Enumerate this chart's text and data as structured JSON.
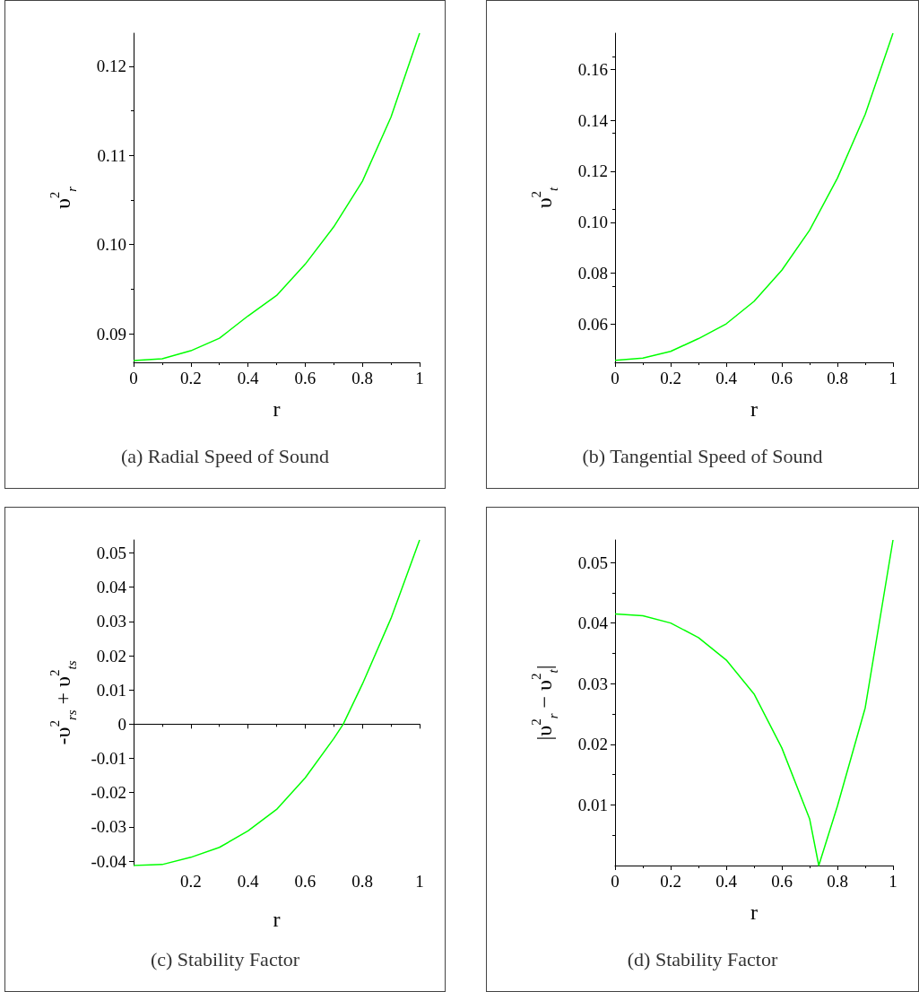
{
  "chart_data": [
    {
      "type": "line",
      "title": "(a) Radial Speed of Sound",
      "xlabel": "r",
      "ylabel": "υ$^{2}$$_{r}$",
      "marker": "none",
      "xlim": [
        0,
        1
      ],
      "ylim": [
        0.0868,
        0.1237
      ],
      "xticks": [
        0,
        0.2,
        0.4,
        0.6,
        0.8,
        1
      ],
      "yticks": [
        0.09,
        {
          "value": 0.1,
          "label": "0.10"
        },
        0.11,
        0.12
      ],
      "series": [
        {
          "color": "#00ff00",
          "x": [
            0,
            0.1,
            0.2,
            0.3,
            0.4,
            0.5,
            0.6,
            0.7,
            0.8,
            0.9,
            1
          ],
          "values": [
            0.087,
            0.0872,
            0.0881,
            0.0895,
            0.092,
            0.0943,
            0.0978,
            0.102,
            0.1071,
            0.1143,
            0.1237
          ]
        }
      ]
    },
    {
      "type": "line",
      "title": "(b) Tangential Speed of Sound",
      "xlabel": "r",
      "ylabel": "υ$^{2}$$_{t}$",
      "marker": "none",
      "xlim": [
        0,
        1
      ],
      "ylim": [
        0.0451,
        0.1741
      ],
      "xticks": [
        0,
        0.2,
        0.4,
        0.6,
        0.8,
        1
      ],
      "yticks": [
        0.06,
        0.08,
        {
          "value": 0.1,
          "label": "0.10"
        },
        0.12,
        0.14,
        0.16
      ],
      "series": [
        {
          "color": "#00ff00",
          "x": [
            0,
            0.1,
            0.2,
            0.3,
            0.4,
            0.5,
            0.6,
            0.7,
            0.8,
            0.9,
            1
          ],
          "values": [
            0.0459,
            0.0468,
            0.0494,
            0.0544,
            0.0602,
            0.069,
            0.0812,
            0.0969,
            0.1173,
            0.1423,
            0.1741
          ]
        }
      ]
    },
    {
      "type": "line",
      "title": "(c) Stability Factor",
      "xlabel": "r",
      "ylabel": "-υ$^{2}$$_{rs}$ + υ$^{2}$$_{ts}$",
      "marker": "none",
      "xlim": [
        0,
        1
      ],
      "ylim": [
        -0.0413,
        0.0538
      ],
      "xticks": [
        0.2,
        0.4,
        0.6,
        0.8,
        1
      ],
      "yticks": [
        -0.04,
        -0.03,
        -0.02,
        -0.01,
        0,
        0.01,
        0.02,
        0.03,
        0.04,
        0.05
      ],
      "series": [
        {
          "color": "#00ff00",
          "x": [
            0,
            0.1,
            0.2,
            0.3,
            0.4,
            0.5,
            0.6,
            0.7,
            0.733,
            0.8,
            0.9,
            1
          ],
          "values": [
            -0.0413,
            -0.041,
            -0.0389,
            -0.036,
            -0.0312,
            -0.0249,
            -0.0157,
            -0.0042,
            0,
            0.0117,
            0.0309,
            0.0538
          ]
        }
      ]
    },
    {
      "type": "line",
      "title": "(d) Stability Factor",
      "xlabel": "r",
      "ylabel": "|υ$^{2}$$_{r}$ − υ$^{2}$$_{t}$|",
      "marker": "none",
      "xlim": [
        0,
        1
      ],
      "ylim": [
        0,
        0.0537
      ],
      "xticks": [
        0,
        0.2,
        0.4,
        0.6,
        0.8,
        1
      ],
      "yticks": [
        0.01,
        0.02,
        0.03,
        0.04,
        0.05
      ],
      "series": [
        {
          "color": "#00ff00",
          "x": [
            0,
            0.1,
            0.2,
            0.3,
            0.4,
            0.5,
            0.6,
            0.7,
            0.733,
            0.8,
            0.9,
            1
          ],
          "values": [
            0.0415,
            0.0412,
            0.04,
            0.0376,
            0.0339,
            0.0283,
            0.0194,
            0.0077,
            0,
            0.0098,
            0.026,
            0.0537
          ]
        }
      ]
    }
  ]
}
